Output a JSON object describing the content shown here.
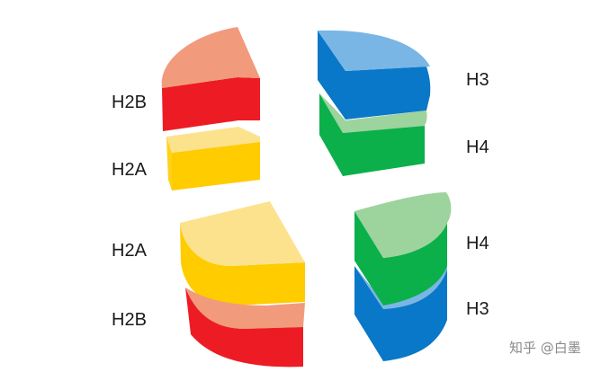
{
  "labels": {
    "top_left_upper": "H2B",
    "top_left_lower": "H2A",
    "top_right_upper": "H3",
    "top_right_lower": "H4",
    "bottom_left_upper": "H2A",
    "bottom_left_lower": "H2B",
    "bottom_right_upper": "H4",
    "bottom_right_lower": "H3"
  },
  "watermark": "知乎 @白墨",
  "colors": {
    "h2a": {
      "top": "#fde28e",
      "side": "#ffcc00"
    },
    "h2b": {
      "top": "#f29a7c",
      "side": "#ed1c24"
    },
    "h3": {
      "top": "#79b6e6",
      "side": "#0a78c8"
    },
    "h4": {
      "top": "#9dd39c",
      "side": "#0bb04a"
    }
  }
}
